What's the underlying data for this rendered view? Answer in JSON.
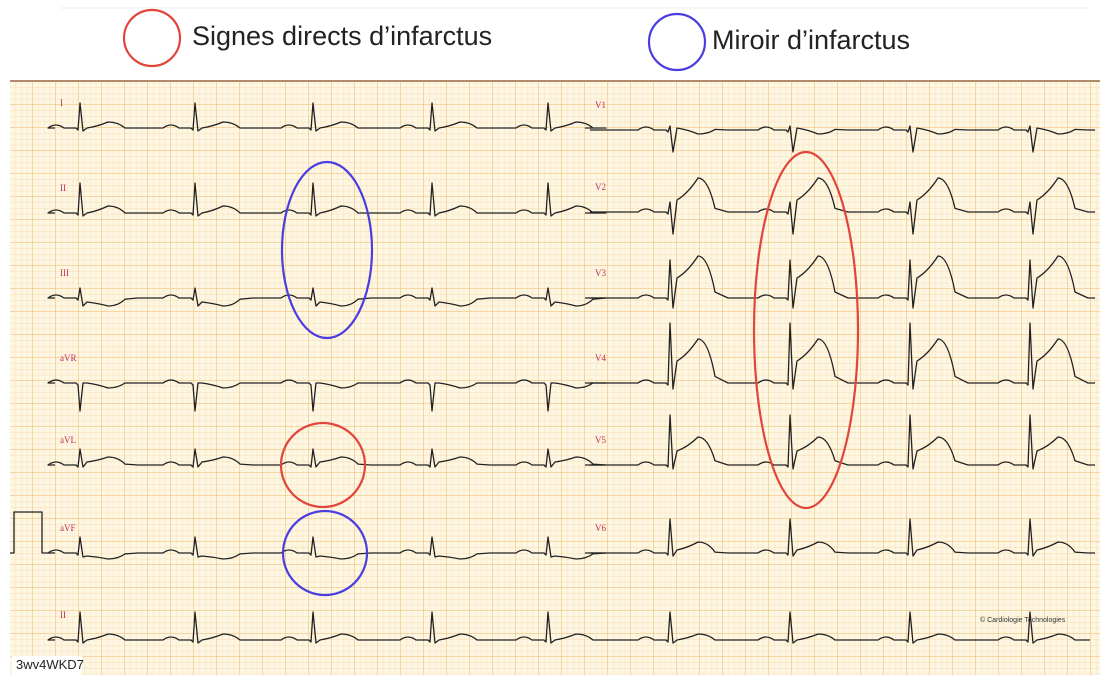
{
  "legend": [
    {
      "label": "Signes directs d’infarctus"
    },
    {
      "label": "Miroir d’infarctus"
    }
  ],
  "leads": [
    "I",
    "II",
    "III",
    "aVR",
    "aVL",
    "aVF",
    "II",
    "V1",
    "V2",
    "V3",
    "V4",
    "V5",
    "V6"
  ],
  "copyright": "© Cardiologie Technologies",
  "record_id": "3wv4WKD7"
}
